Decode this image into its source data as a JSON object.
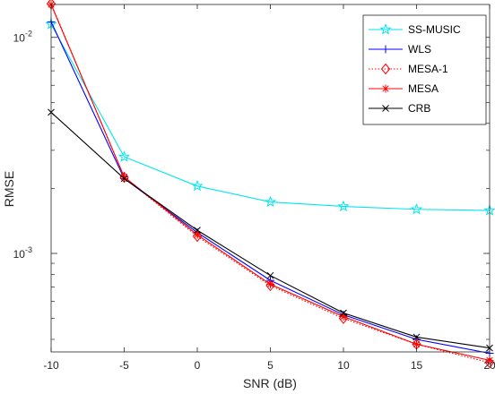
{
  "chart_data": {
    "type": "line",
    "xlabel": "SNR (dB)",
    "ylabel": "RMSE",
    "yscale": "log",
    "xlim": [
      -10,
      20
    ],
    "ylim": [
      0.00035,
      0.0142
    ],
    "x": [
      -10,
      -5,
      0,
      5,
      10,
      15,
      20
    ],
    "x_ticks": [
      "-10",
      "-5",
      "0",
      "5",
      "10",
      "15",
      "20"
    ],
    "y_ticks": [
      {
        "value": 0.01,
        "base": "10",
        "exp": "-2"
      },
      {
        "value": 0.001,
        "base": "10",
        "exp": "-3"
      }
    ],
    "legend_position": "top-right",
    "grid": false,
    "series": [
      {
        "name": "SS-MUSIC",
        "color": "#00e5ee",
        "marker": "star",
        "dash": "solid",
        "values": [
          0.0115,
          0.0028,
          0.00205,
          0.00173,
          0.00165,
          0.0016,
          0.00158
        ]
      },
      {
        "name": "WLS",
        "color": "#0000ff",
        "marker": "plus",
        "dash": "solid",
        "values": [
          0.0118,
          0.00222,
          0.00125,
          0.00075,
          0.00052,
          0.0004,
          0.000345
        ]
      },
      {
        "name": "MESA-1",
        "color": "#ff0000",
        "marker": "diamond",
        "dash": "dotted",
        "values": [
          0.0143,
          0.00225,
          0.0012,
          0.00071,
          0.0005,
          0.00038,
          0.000312
        ]
      },
      {
        "name": "MESA",
        "color": "#ff0000",
        "marker": "asterisk",
        "dash": "solid",
        "values": [
          0.0142,
          0.00226,
          0.00122,
          0.00072,
          0.00051,
          0.00038,
          0.00032
        ]
      },
      {
        "name": "CRB",
        "color": "#000000",
        "marker": "x",
        "dash": "solid",
        "values": [
          0.0045,
          0.00222,
          0.00128,
          0.00079,
          0.00053,
          0.00041,
          0.000365
        ]
      }
    ]
  }
}
